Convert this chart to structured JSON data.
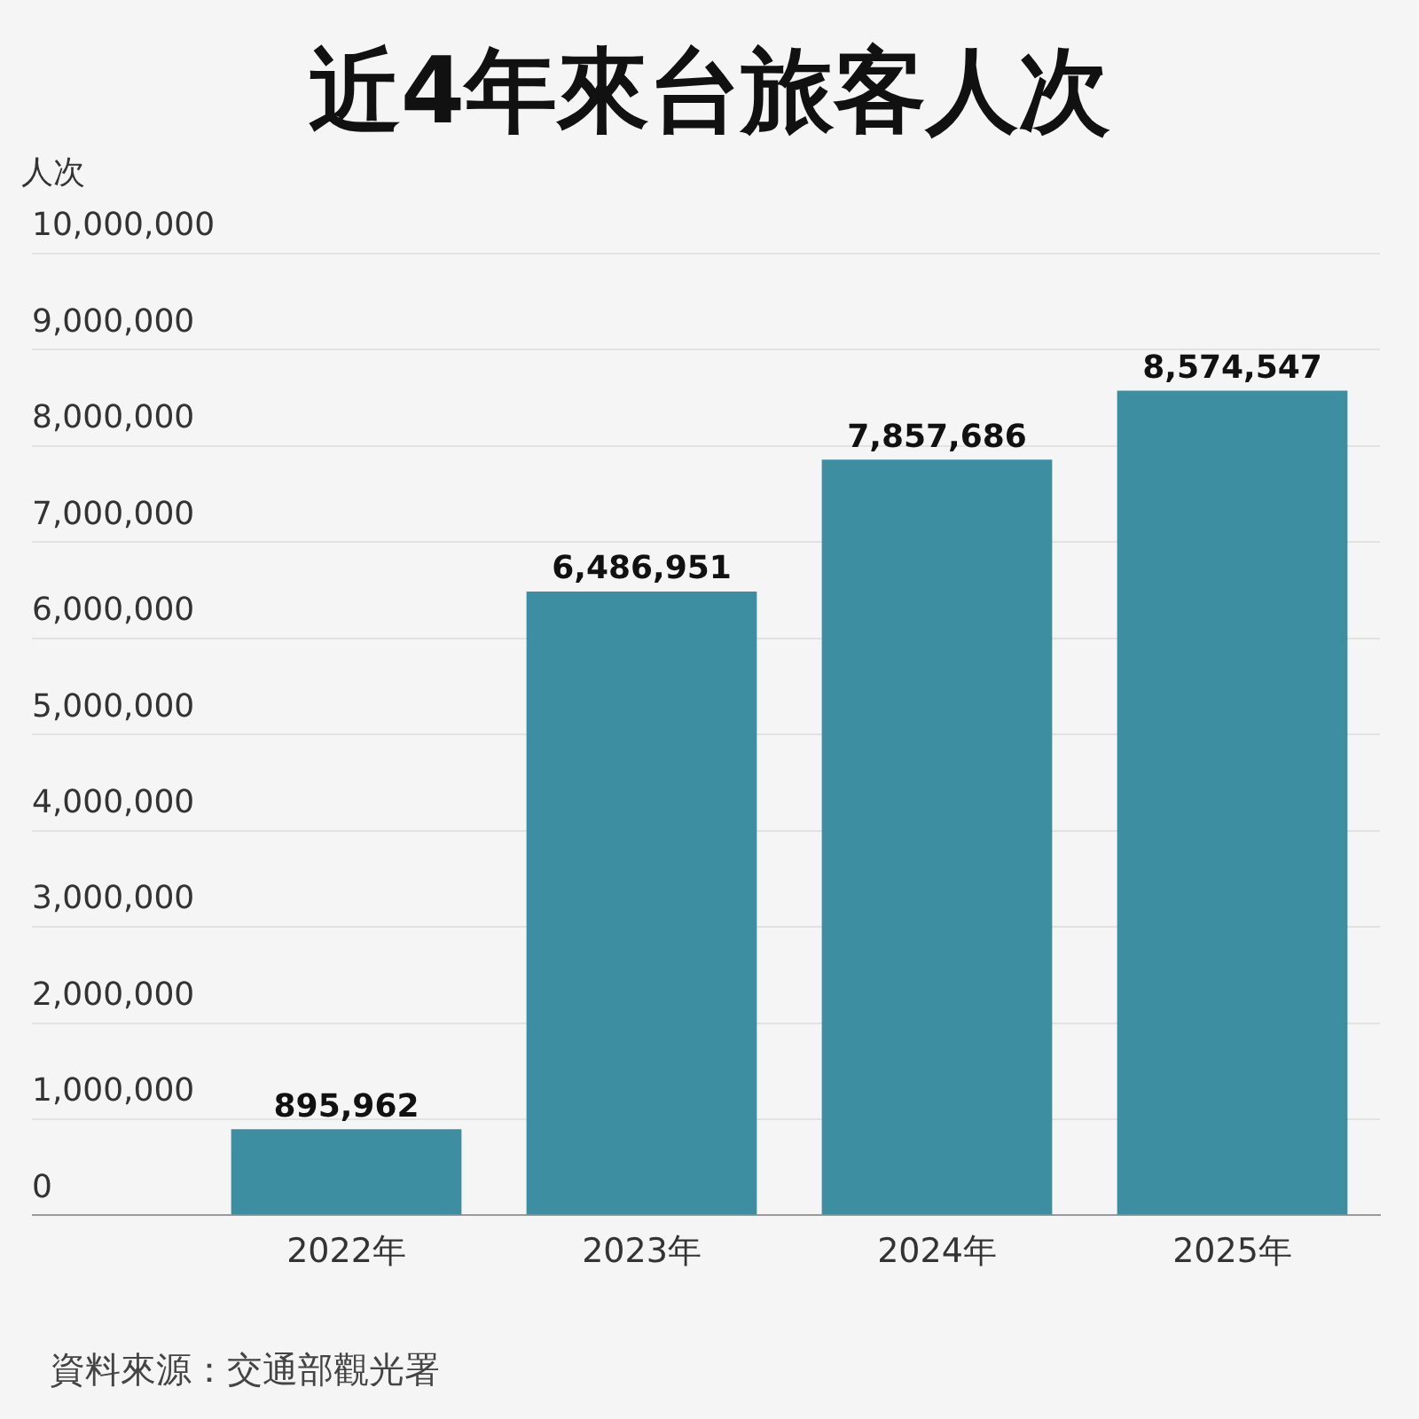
{
  "chart_data": {
    "type": "bar",
    "title": "近4年來台旅客人次",
    "ylabel": "人次",
    "categories": [
      "2022年",
      "2023年",
      "2024年",
      "2025年"
    ],
    "values": [
      895962,
      6486951,
      7857686,
      8574547
    ],
    "value_labels": [
      "895,962",
      "6,486,951",
      "7,857,686",
      "8,574,547"
    ],
    "color": "#3e8ea2",
    "ylim": [
      0,
      10000000
    ],
    "yticks": [
      0,
      {
        "value": 1000000,
        "label": "1,000,000"
      },
      {
        "value": 2000000,
        "label": "2,000,000"
      },
      {
        "value": 3000000,
        "label": "3,000,000"
      },
      {
        "value": 4000000,
        "label": "4,000,000"
      },
      {
        "value": 5000000,
        "label": "5,000,000"
      },
      {
        "value": 6000000,
        "label": "6,000,000"
      },
      {
        "value": 7000000,
        "label": "7,000,000"
      },
      {
        "value": 8000000,
        "label": "8,000,000"
      },
      {
        "value": 9000000,
        "label": "9,000,000"
      },
      {
        "value": 10000000,
        "label": "10,000,000"
      }
    ],
    "grid": "y",
    "annotations": [
      "資料來源：交通部觀光署"
    ]
  }
}
